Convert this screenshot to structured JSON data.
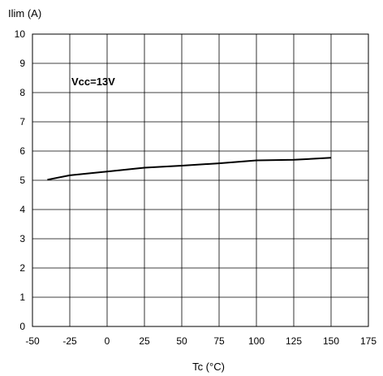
{
  "chart_data": {
    "type": "line",
    "title": "",
    "xlabel": "Tc (°C)",
    "ylabel": "Ilim (A)",
    "xlim": [
      -50,
      175
    ],
    "ylim": [
      0,
      10
    ],
    "xticks": [
      "-50",
      "-25",
      "0",
      "25",
      "50",
      "75",
      "100",
      "125",
      "150",
      "175"
    ],
    "yticks": [
      "0",
      "1",
      "2",
      "3",
      "4",
      "5",
      "6",
      "7",
      "8",
      "9",
      "10"
    ],
    "grid": true,
    "annotation": "Vcc=13V",
    "series": [
      {
        "x": [
          -40,
          -25,
          0,
          25,
          50,
          75,
          100,
          125,
          150
        ],
        "y": [
          5.02,
          5.17,
          5.3,
          5.43,
          5.5,
          5.58,
          5.68,
          5.7,
          5.77
        ]
      }
    ],
    "colors": {
      "line": "#000000",
      "grid": "#000000",
      "background": "#ffffff"
    }
  }
}
